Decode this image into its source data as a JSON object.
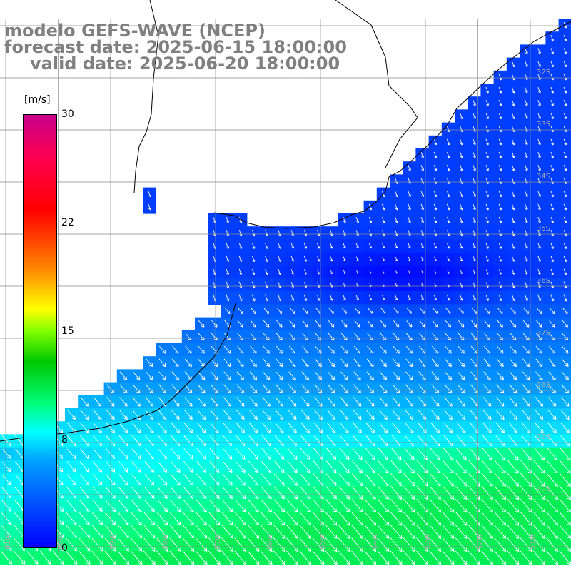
{
  "title": {
    "line1": "modelo GEFS-WAVE (NCEP)",
    "line2": "forecast date: 2025-06-15 18:00:00",
    "line3": "valid date: 2025-06-20 18:00:00"
  },
  "colorbar": {
    "unit": "[m/s]",
    "min": 0,
    "max": 30,
    "ticks": [
      {
        "label": "30",
        "value": 30
      },
      {
        "label": "22",
        "value": 22
      },
      {
        "label": "15",
        "value": 15
      },
      {
        "label": "8",
        "value": 8
      },
      {
        "label": "0",
        "value": 0
      }
    ],
    "colors": [
      "#0000ff",
      "#00a0ff",
      "#00ffff",
      "#00ff80",
      "#00c800",
      "#80ff00",
      "#ffff00",
      "#ff8000",
      "#ff0000",
      "#c8008c"
    ]
  },
  "grid": {
    "lat_labels": [
      "32S",
      "33S",
      "34S",
      "35S",
      "36S",
      "37S",
      "38S",
      "39S",
      "40S"
    ],
    "lon_labels": [
      "61W",
      "60W",
      "59W",
      "58W",
      "57W",
      "56W",
      "55W",
      "54W",
      "53W",
      "52W",
      "51W"
    ]
  },
  "colors": {
    "land": "#ffffff",
    "coast": "#000000",
    "gridline": "#888888",
    "label_gray": "#808080"
  }
}
